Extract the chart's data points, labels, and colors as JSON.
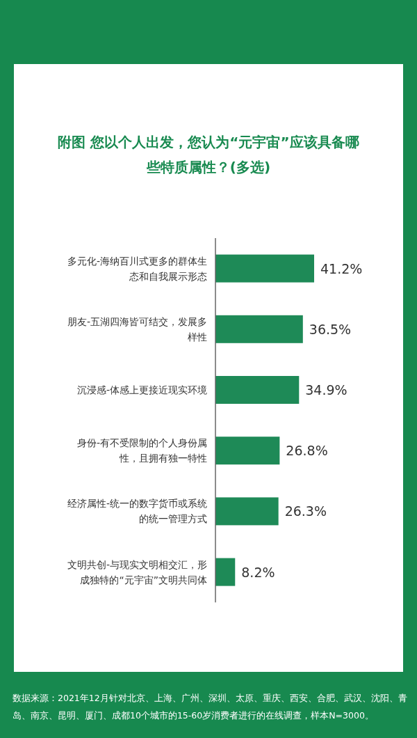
{
  "chart_data": {
    "type": "bar",
    "orientation": "horizontal",
    "title": "附图 您以个人出发，您认为“元宇宙”应该具备哪些特质属性？(多选)",
    "categories": [
      "多元化-海纳百川式更多的群体生态和自我展示形态",
      "朋友-五湖四海皆可结交，发展多样性",
      "沉浸感-体感上更接近现实环境",
      "身份-有不受限制的个人身份属性，且拥有独一特性",
      "经济属性-统一的数字货币或系统的统一管理方式",
      "文明共创-与现实文明相交汇，形成独特的“元宇宙”文明共同体"
    ],
    "values": [
      41.2,
      36.5,
      34.9,
      26.8,
      26.3,
      8.2
    ],
    "value_labels": [
      "41.2%",
      "36.5%",
      "34.9%",
      "26.8%",
      "26.3%",
      "8.2%"
    ],
    "color": "#1e8a57",
    "annotations": [
      "数据来源：2021年12月针对北京、上海、广州、深圳、太原、重庆、西安、合肥、武汉、沈阳、青岛、南京、昆明、厦门、成都10个城市的15-60岁消费者进行的在线调查，样本N=3000。"
    ]
  }
}
